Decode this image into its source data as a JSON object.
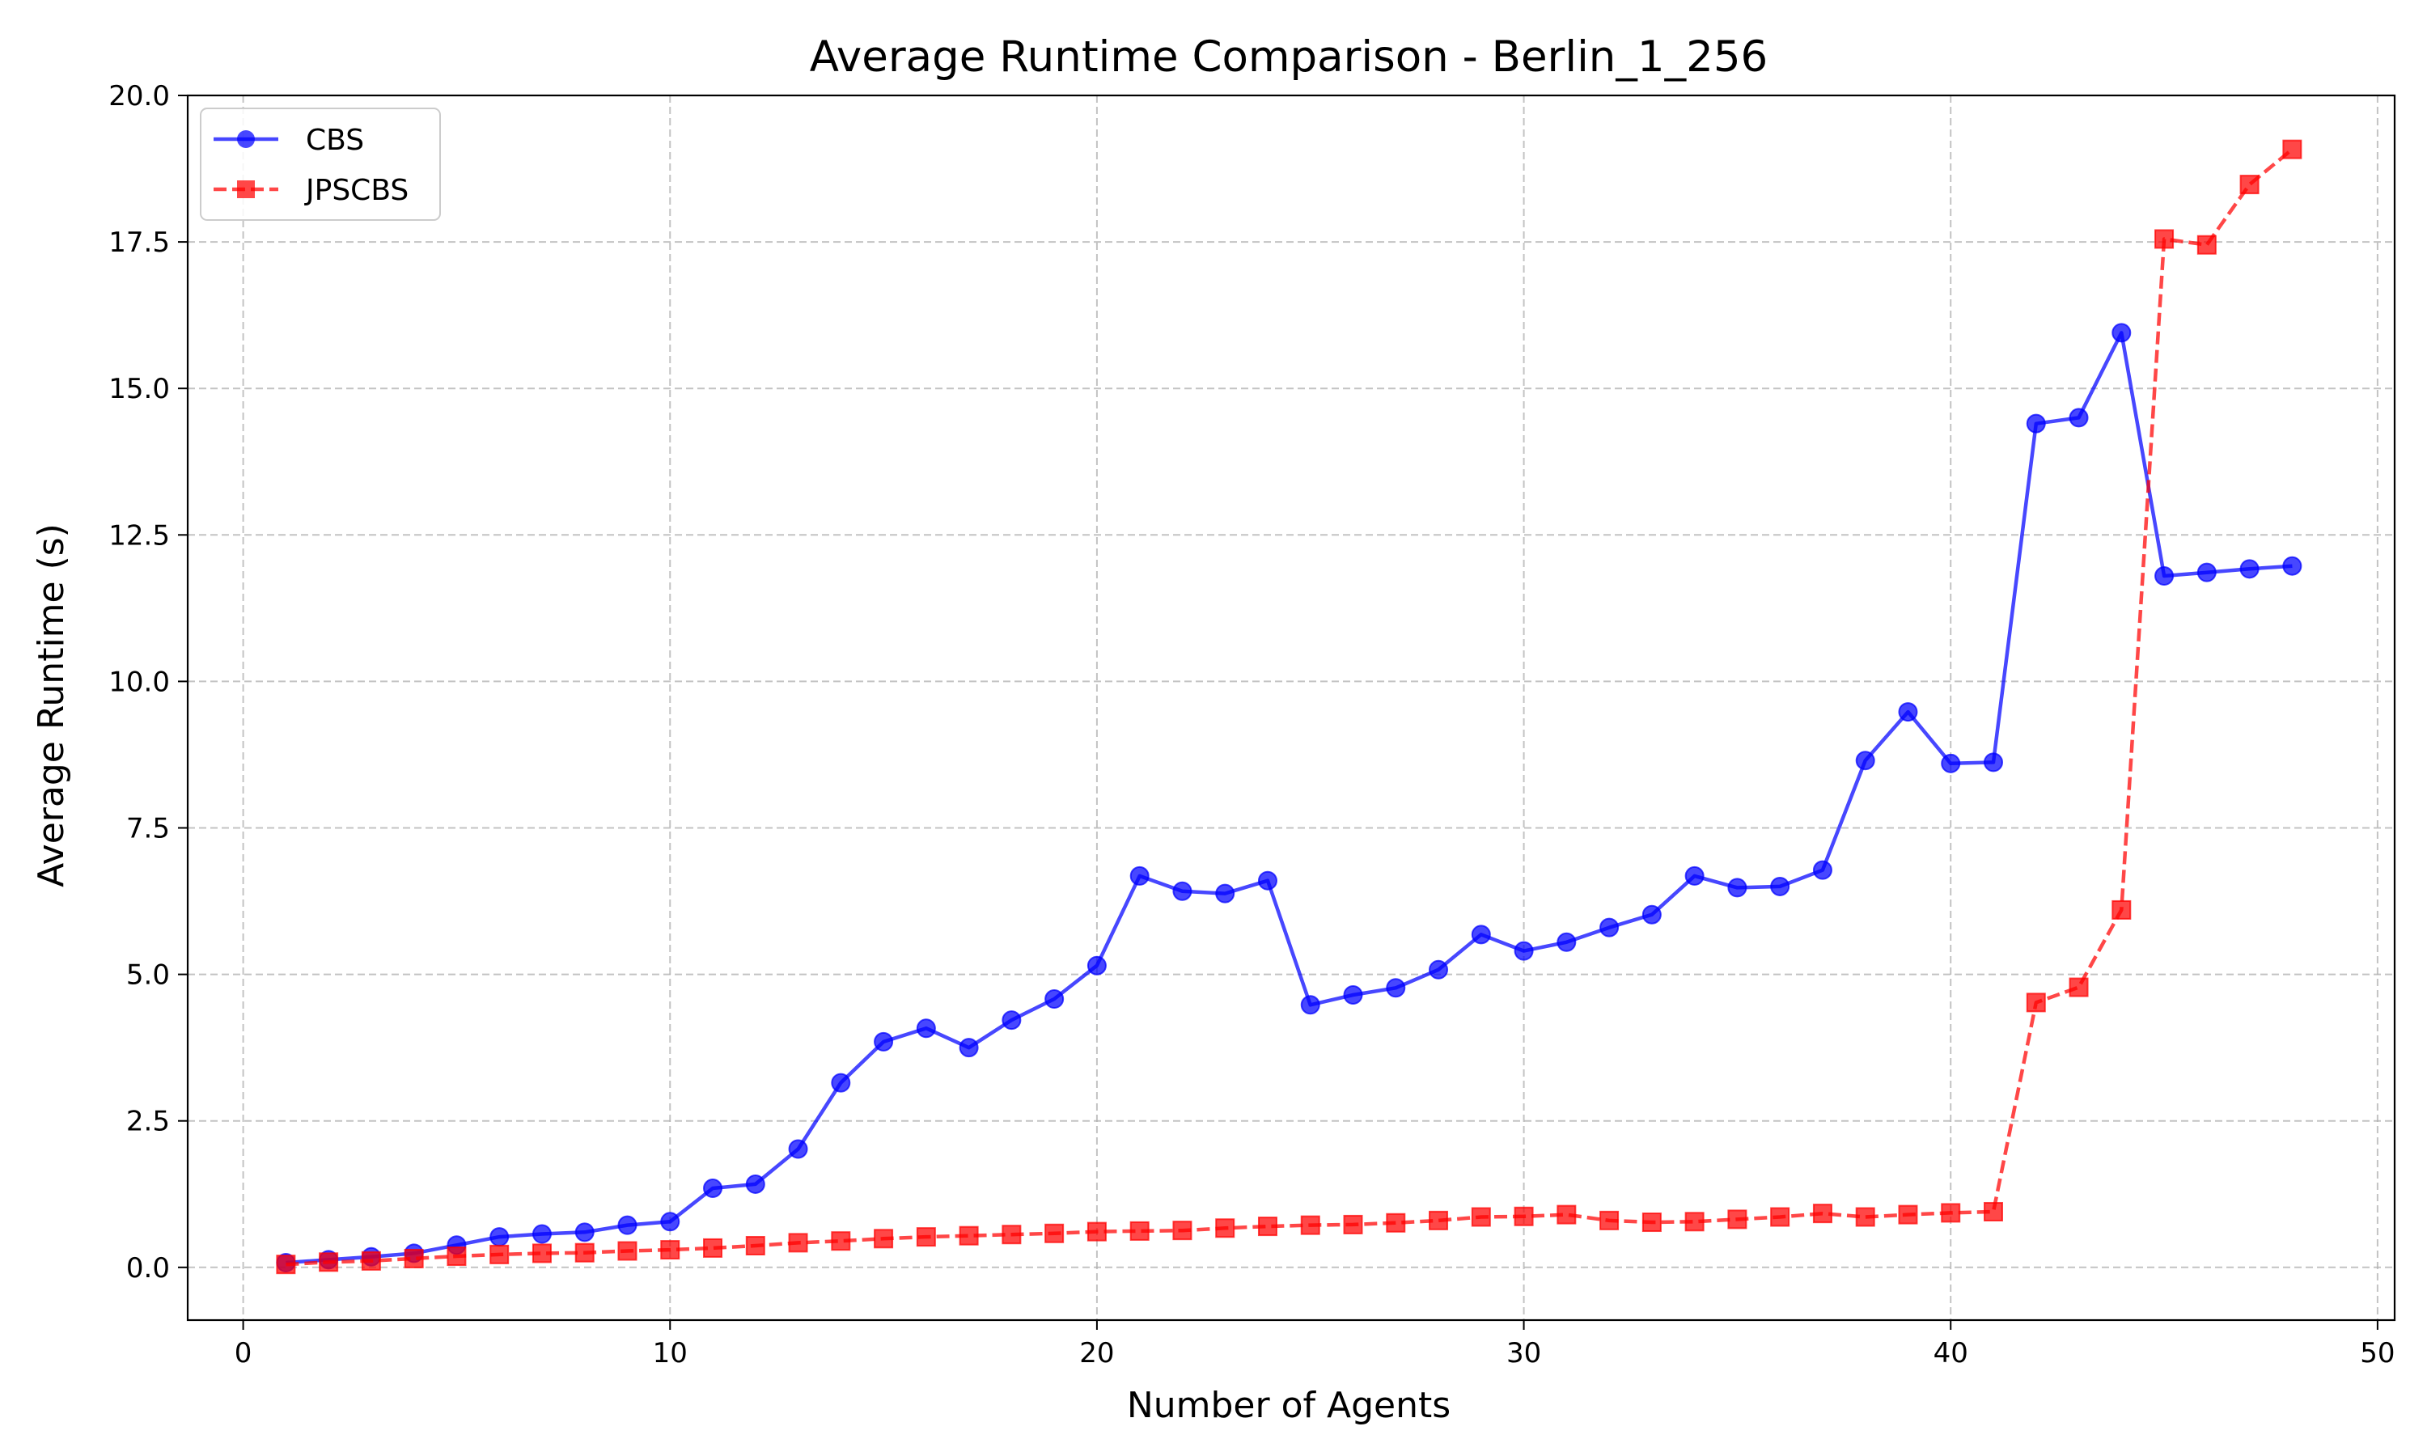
{
  "chart_data": {
    "type": "line",
    "title": "Average Runtime Comparison - Berlin_1_256",
    "xlabel": "Number of Agents",
    "ylabel": "Average Runtime (s)",
    "xlim": [
      -1.3,
      50.4
    ],
    "ylim": [
      -0.9,
      20.0
    ],
    "xticks": [
      0,
      10,
      20,
      30,
      40,
      50
    ],
    "xtick_labels": [
      "0",
      "10",
      "20",
      "30",
      "40",
      "50"
    ],
    "yticks": [
      0,
      2.5,
      5,
      7.5,
      10,
      12.5,
      15,
      17.5,
      20
    ],
    "ytick_labels": [
      "0.0",
      "2.5",
      "5.0",
      "7.5",
      "10.0",
      "12.5",
      "15.0",
      "17.5",
      "20.0"
    ],
    "grid": true,
    "legend_position": "top-left",
    "x": [
      1,
      2,
      3,
      4,
      5,
      6,
      7,
      8,
      9,
      10,
      11,
      12,
      13,
      14,
      15,
      16,
      17,
      18,
      19,
      20,
      21,
      22,
      23,
      24,
      25,
      26,
      27,
      28,
      29,
      30,
      31,
      32,
      33,
      34,
      35,
      36,
      37,
      38,
      39,
      40,
      41,
      42,
      43,
      44,
      45,
      46,
      47,
      48
    ],
    "series": [
      {
        "name": "CBS",
        "color": "#0000ff",
        "marker": "circle",
        "linestyle": "solid",
        "values": [
          0.08,
          0.13,
          0.18,
          0.24,
          0.38,
          0.52,
          0.57,
          0.6,
          0.72,
          0.78,
          1.35,
          1.42,
          2.02,
          3.15,
          3.85,
          4.08,
          3.75,
          4.22,
          4.58,
          5.15,
          6.68,
          6.42,
          6.38,
          6.6,
          4.48,
          4.65,
          4.77,
          5.08,
          5.68,
          5.4,
          5.55,
          5.8,
          6.02,
          6.68,
          6.48,
          6.5,
          6.78,
          8.65,
          9.48,
          8.6,
          8.62,
          14.4,
          14.5,
          15.95,
          11.8,
          11.86,
          11.92,
          11.97
        ]
      },
      {
        "name": "JPSCBS",
        "color": "#ff0000",
        "marker": "square",
        "linestyle": "dashed",
        "values": [
          0.05,
          0.09,
          0.11,
          0.15,
          0.19,
          0.22,
          0.24,
          0.25,
          0.28,
          0.3,
          0.33,
          0.37,
          0.42,
          0.45,
          0.49,
          0.52,
          0.54,
          0.56,
          0.58,
          0.61,
          0.62,
          0.63,
          0.67,
          0.7,
          0.72,
          0.73,
          0.76,
          0.8,
          0.86,
          0.87,
          0.9,
          0.8,
          0.77,
          0.78,
          0.82,
          0.86,
          0.92,
          0.86,
          0.9,
          0.93,
          0.95,
          4.52,
          4.78,
          6.1,
          17.55,
          17.45,
          18.48,
          19.08
        ]
      }
    ]
  }
}
